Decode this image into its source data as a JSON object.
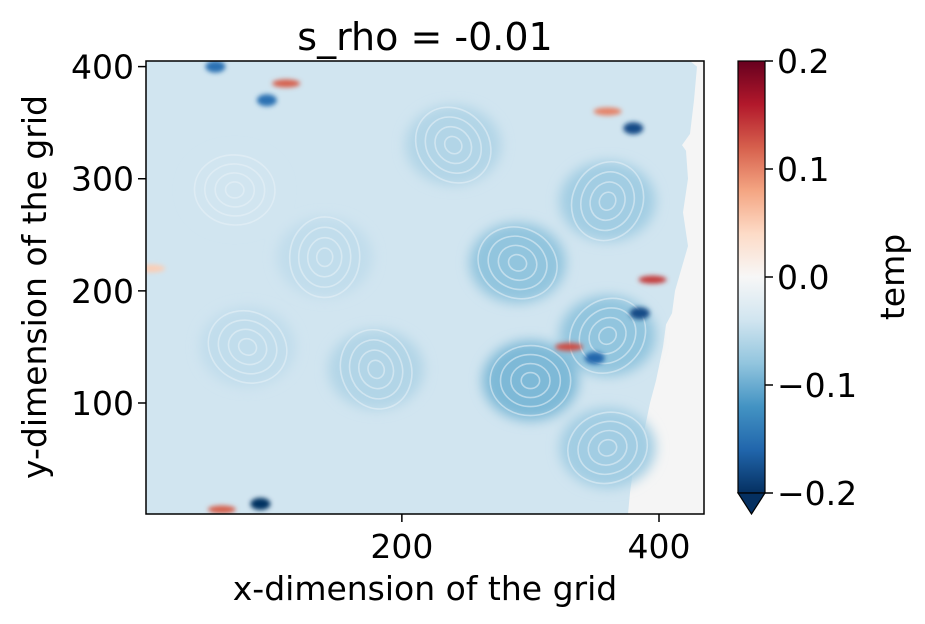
{
  "chart_data": {
    "type": "heatmap",
    "title": "s_rho = -0.01",
    "xlabel": "x-dimension of the grid",
    "ylabel": "y-dimension of the grid",
    "xlim": [
      1,
      435
    ],
    "ylim": [
      1,
      405
    ],
    "x_ticks": [
      {
        "value": 200,
        "label": "200"
      },
      {
        "value": 400,
        "label": "400"
      }
    ],
    "y_ticks": [
      {
        "value": 100,
        "label": "100"
      },
      {
        "value": 200,
        "label": "200"
      },
      {
        "value": 300,
        "label": "300"
      },
      {
        "value": 400,
        "label": "400"
      }
    ],
    "colorbar": {
      "label": "temp",
      "colormap": "RdBu_r",
      "vmin": -0.2,
      "vmax": 0.2,
      "extend": "min",
      "ticks": [
        {
          "value": 0.2,
          "label": "0.2"
        },
        {
          "value": 0.1,
          "label": "0.1"
        },
        {
          "value": 0.0,
          "label": "0.0"
        },
        {
          "value": -0.1,
          "label": "−0.1"
        },
        {
          "value": -0.2,
          "label": "−0.2"
        }
      ]
    },
    "colors": {
      "land": "#f5f5f5",
      "cmap_stops": [
        "#053061",
        "#2166ac",
        "#4393c3",
        "#92c5de",
        "#d1e5f0",
        "#f7f7f7",
        "#fddbc7",
        "#f4a582",
        "#d6604d",
        "#b2182b",
        "#67001f"
      ]
    },
    "field_description_values": {
      "background_temp": -0.04,
      "eddies": [
        {
          "x": 300,
          "y": 120,
          "value": -0.09
        },
        {
          "x": 290,
          "y": 225,
          "value": -0.08
        },
        {
          "x": 240,
          "y": 330,
          "value": -0.06
        },
        {
          "x": 180,
          "y": 130,
          "value": -0.06
        },
        {
          "x": 140,
          "y": 230,
          "value": -0.05
        },
        {
          "x": 360,
          "y": 280,
          "value": -0.07
        },
        {
          "x": 360,
          "y": 160,
          "value": -0.08
        },
        {
          "x": 360,
          "y": 60,
          "value": -0.07
        },
        {
          "x": 70,
          "y": 290,
          "value": -0.04
        },
        {
          "x": 80,
          "y": 150,
          "value": -0.05
        }
      ],
      "warm_spots": [
        {
          "x": 110,
          "y": 385,
          "value": 0.12
        },
        {
          "x": 360,
          "y": 360,
          "value": 0.1
        },
        {
          "x": 330,
          "y": 150,
          "value": 0.13
        },
        {
          "x": 395,
          "y": 210,
          "value": 0.14
        },
        {
          "x": 60,
          "y": 5,
          "value": 0.12
        },
        {
          "x": 5,
          "y": 220,
          "value": 0.05
        }
      ],
      "cold_spots": [
        {
          "x": 90,
          "y": 10,
          "value": -0.2
        },
        {
          "x": 55,
          "y": 400,
          "value": -0.15
        },
        {
          "x": 95,
          "y": 370,
          "value": -0.15
        },
        {
          "x": 380,
          "y": 345,
          "value": -0.18
        },
        {
          "x": 385,
          "y": 180,
          "value": -0.18
        },
        {
          "x": 350,
          "y": 140,
          "value": -0.16
        }
      ]
    }
  }
}
